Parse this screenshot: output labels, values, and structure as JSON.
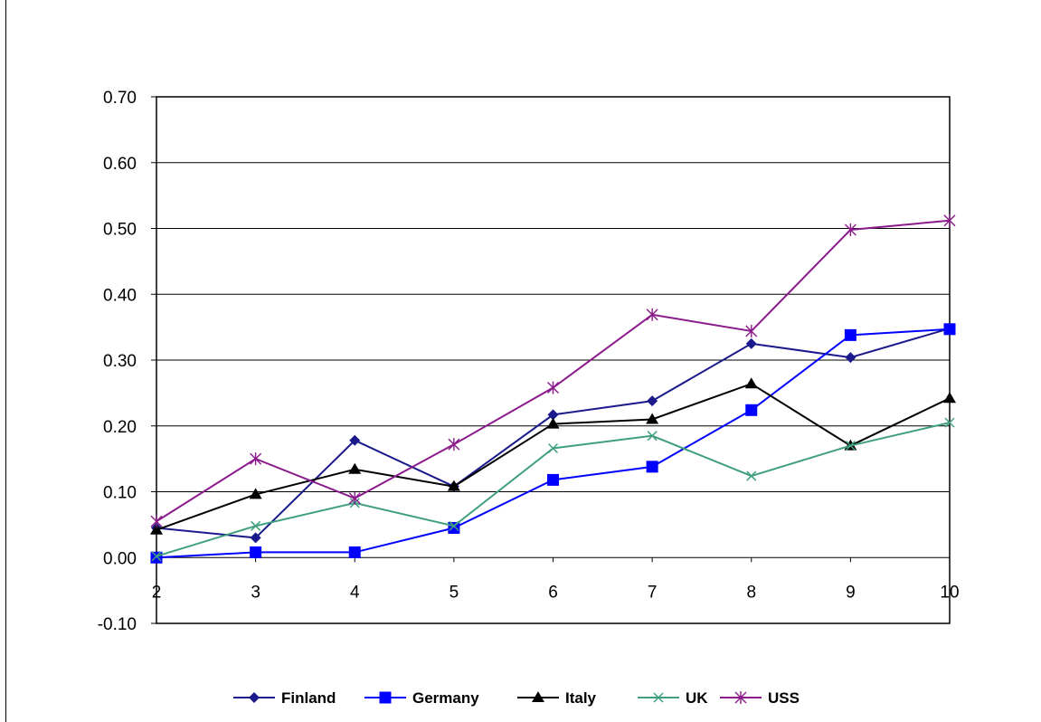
{
  "chart_data": {
    "type": "line",
    "title": "",
    "xlabel": "",
    "ylabel": "",
    "x": [
      2,
      3,
      4,
      5,
      6,
      7,
      8,
      9,
      10
    ],
    "x_tick_labels": [
      "2",
      "3",
      "4",
      "5",
      "6",
      "7",
      "8",
      "9",
      "10"
    ],
    "ylim": [
      -0.1,
      0.7
    ],
    "y_ticks": [
      -0.1,
      0.0,
      0.1,
      0.2,
      0.3,
      0.4,
      0.5,
      0.6,
      0.7
    ],
    "y_tick_labels": [
      "-0.10",
      "0.00",
      "0.10",
      "0.20",
      "0.30",
      "0.40",
      "0.50",
      "0.60",
      "0.70"
    ],
    "grid": true,
    "legend_position": "bottom",
    "series": [
      {
        "name": "Finland",
        "color": "#1a1a8c",
        "marker": "diamond",
        "values": [
          0.045,
          0.03,
          0.178,
          0.108,
          0.217,
          0.238,
          0.325,
          0.304,
          0.348
        ]
      },
      {
        "name": "Germany",
        "color": "#0000ff",
        "marker": "square",
        "values": [
          0.0,
          0.008,
          0.008,
          0.045,
          0.118,
          0.138,
          0.224,
          0.338,
          0.347
        ]
      },
      {
        "name": "Italy",
        "color": "#000000",
        "marker": "triangle",
        "values": [
          0.042,
          0.096,
          0.134,
          0.108,
          0.203,
          0.21,
          0.264,
          0.17,
          0.242
        ]
      },
      {
        "name": "UK",
        "color": "#3f9f7f",
        "marker": "x",
        "values": [
          0.002,
          0.048,
          0.083,
          0.048,
          0.166,
          0.185,
          0.124,
          0.17,
          0.205
        ]
      },
      {
        "name": "USS",
        "color": "#8b1a8b",
        "marker": "star",
        "values": [
          0.055,
          0.15,
          0.09,
          0.172,
          0.258,
          0.369,
          0.344,
          0.498,
          0.512
        ]
      }
    ]
  }
}
